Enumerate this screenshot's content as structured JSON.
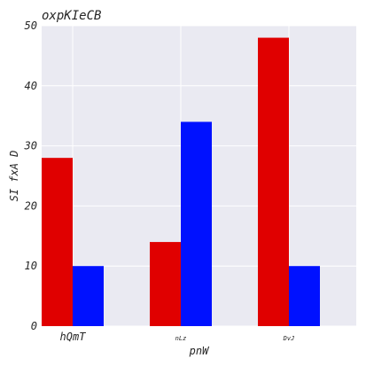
{
  "chart_data": {
    "type": "bar",
    "title": "oxpKIeCB",
    "xlabel": "pnW",
    "ylabel": "SI  fxA D",
    "categories": [
      "hQmT",
      "nLz",
      "DvJ"
    ],
    "series": [
      {
        "color": "#e00000",
        "values": [
          28,
          14,
          48
        ]
      },
      {
        "color": "#0011ff",
        "values": [
          10,
          34,
          10
        ]
      }
    ],
    "ylim": [
      0,
      50
    ],
    "yticks": [
      0,
      10,
      20,
      30,
      40,
      50
    ],
    "grid": true,
    "background": "#eaeaf2"
  }
}
